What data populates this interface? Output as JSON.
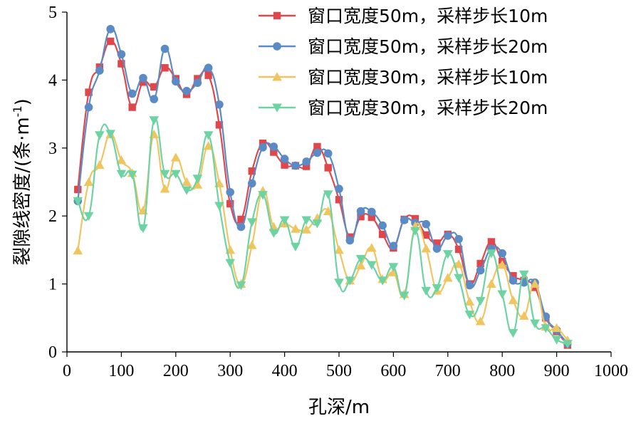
{
  "chart_data": {
    "type": "line",
    "xlabel": "孔深/m",
    "ylabel_main": "裂隙线密度/(条·m",
    "ylabel_sup": "-1",
    "ylabel_tail": ")",
    "xlim": [
      0,
      1000
    ],
    "ylim": [
      0,
      5
    ],
    "xticks": [
      0,
      100,
      200,
      300,
      400,
      500,
      600,
      700,
      800,
      900,
      1000
    ],
    "yticks": [
      0,
      1,
      2,
      3,
      4,
      5
    ],
    "grid": false,
    "legend_position": "top-right",
    "series": [
      {
        "name": "窗口宽度50m，采样步长10m",
        "color": "#e0474c",
        "marker": "square",
        "x": [
          20,
          40,
          60,
          80,
          100,
          120,
          140,
          160,
          180,
          200,
          220,
          240,
          260,
          280,
          300,
          320,
          340,
          360,
          380,
          400,
          420,
          440,
          460,
          480,
          500,
          520,
          540,
          560,
          580,
          600,
          620,
          640,
          660,
          680,
          700,
          720,
          740,
          760,
          780,
          800,
          820,
          840,
          860,
          880,
          900,
          920
        ],
        "values": [
          2.39,
          3.82,
          4.19,
          4.57,
          4.24,
          3.6,
          3.97,
          3.9,
          4.18,
          4.02,
          3.79,
          4.02,
          4.07,
          3.34,
          2.18,
          1.95,
          2.66,
          3.07,
          2.94,
          2.75,
          2.74,
          2.73,
          3.02,
          2.71,
          2.24,
          1.69,
          1.99,
          1.98,
          1.73,
          1.53,
          1.95,
          1.96,
          1.72,
          1.6,
          1.73,
          1.51,
          1.0,
          1.3,
          1.62,
          1.33,
          1.12,
          1.05,
          0.95,
          0.5,
          0.3,
          0.1
        ]
      },
      {
        "name": "窗口宽度50m，采样步长20m",
        "color": "#5b8bc4",
        "marker": "circle",
        "x": [
          20,
          40,
          60,
          80,
          100,
          120,
          140,
          160,
          180,
          200,
          220,
          240,
          260,
          280,
          300,
          320,
          340,
          360,
          380,
          400,
          420,
          440,
          460,
          480,
          500,
          520,
          540,
          560,
          580,
          600,
          620,
          640,
          660,
          680,
          700,
          720,
          740,
          760,
          780,
          800,
          820,
          840,
          860,
          880,
          900,
          920
        ],
        "values": [
          2.22,
          3.6,
          4.14,
          4.75,
          4.38,
          3.8,
          4.03,
          3.72,
          4.46,
          3.98,
          3.84,
          3.96,
          4.18,
          3.64,
          2.35,
          1.84,
          2.48,
          3.01,
          3.02,
          2.84,
          2.74,
          2.8,
          2.93,
          2.92,
          2.4,
          1.64,
          2.07,
          2.06,
          1.86,
          1.56,
          1.94,
          1.9,
          1.88,
          1.52,
          1.71,
          1.66,
          0.98,
          1.2,
          1.52,
          1.45,
          1.05,
          1.02,
          1.02,
          0.52,
          0.32,
          0.12
        ]
      },
      {
        "name": "窗口宽度30m，采样步长10m",
        "color": "#efc560",
        "marker": "triangle-up",
        "x": [
          20,
          40,
          60,
          80,
          100,
          120,
          140,
          160,
          180,
          200,
          220,
          240,
          260,
          280,
          300,
          320,
          340,
          360,
          380,
          400,
          420,
          440,
          460,
          480,
          500,
          520,
          540,
          560,
          580,
          600,
          620,
          640,
          660,
          680,
          700,
          720,
          740,
          760,
          780,
          800,
          820,
          840,
          860,
          880,
          900,
          920
        ],
        "values": [
          1.49,
          2.5,
          2.75,
          3.2,
          2.82,
          2.63,
          2.08,
          3.2,
          2.4,
          2.86,
          2.5,
          2.46,
          3.03,
          2.48,
          1.5,
          1.0,
          1.57,
          2.37,
          1.84,
          1.89,
          1.81,
          1.8,
          1.97,
          2.07,
          1.5,
          1.05,
          1.27,
          1.53,
          1.07,
          1.17,
          0.85,
          1.85,
          1.52,
          0.9,
          1.09,
          1.29,
          0.74,
          0.45,
          1.0,
          1.28,
          0.76,
          0.53,
          1.0,
          0.37,
          0.35,
          0.17
        ]
      },
      {
        "name": "窗口宽度30m，采样步长20m",
        "color": "#6dd3a3",
        "marker": "triangle-down",
        "x": [
          20,
          40,
          60,
          80,
          100,
          120,
          140,
          160,
          180,
          200,
          220,
          240,
          260,
          280,
          300,
          320,
          340,
          360,
          380,
          400,
          420,
          440,
          460,
          480,
          500,
          520,
          540,
          560,
          580,
          600,
          620,
          640,
          660,
          680,
          700,
          720,
          740,
          760,
          780,
          800,
          820,
          840,
          860,
          880,
          900,
          920
        ],
        "values": [
          2.22,
          2.0,
          3.19,
          3.21,
          2.62,
          2.61,
          1.82,
          3.41,
          2.62,
          2.62,
          2.38,
          2.55,
          3.19,
          2.15,
          1.31,
          0.98,
          1.91,
          2.31,
          1.75,
          1.94,
          1.55,
          1.94,
          1.89,
          2.32,
          1.02,
          1.05,
          1.37,
          1.28,
          1.05,
          1.25,
          0.83,
          1.78,
          0.9,
          0.94,
          1.44,
          1.09,
          0.55,
          0.75,
          1.45,
          0.85,
          0.28,
          1.14,
          0.42,
          0.35,
          0.18,
          0.12
        ]
      }
    ]
  }
}
